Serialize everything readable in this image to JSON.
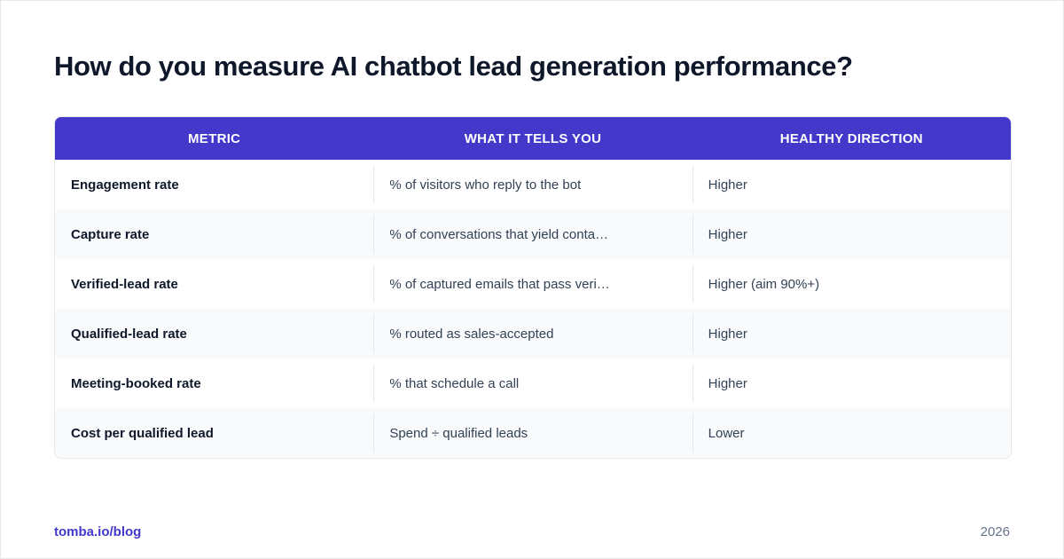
{
  "title": "How do you measure AI chatbot lead generation performance?",
  "table": {
    "headers": [
      "METRIC",
      "WHAT IT TELLS YOU",
      "HEALTHY DIRECTION"
    ],
    "rows": [
      {
        "metric": "Engagement rate",
        "description": "% of visitors who reply to the bot",
        "direction": "Higher"
      },
      {
        "metric": "Capture rate",
        "description": "% of conversations that yield conta…",
        "direction": "Higher"
      },
      {
        "metric": "Verified-lead rate",
        "description": "% of captured emails that pass veri…",
        "direction": "Higher (aim 90%+)"
      },
      {
        "metric": "Qualified-lead rate",
        "description": "% routed as sales-accepted",
        "direction": "Higher"
      },
      {
        "metric": "Meeting-booked rate",
        "description": "% that schedule a call",
        "direction": "Higher"
      },
      {
        "metric": "Cost per qualified lead",
        "description": "Spend ÷ qualified leads",
        "direction": "Lower"
      }
    ]
  },
  "footer": {
    "source": "tomba.io/blog",
    "year": "2026"
  },
  "colors": {
    "accent": "#4338ca",
    "header_text": "#ffffff",
    "title_text": "#0f172a",
    "row_alt": "#f8fafc"
  }
}
